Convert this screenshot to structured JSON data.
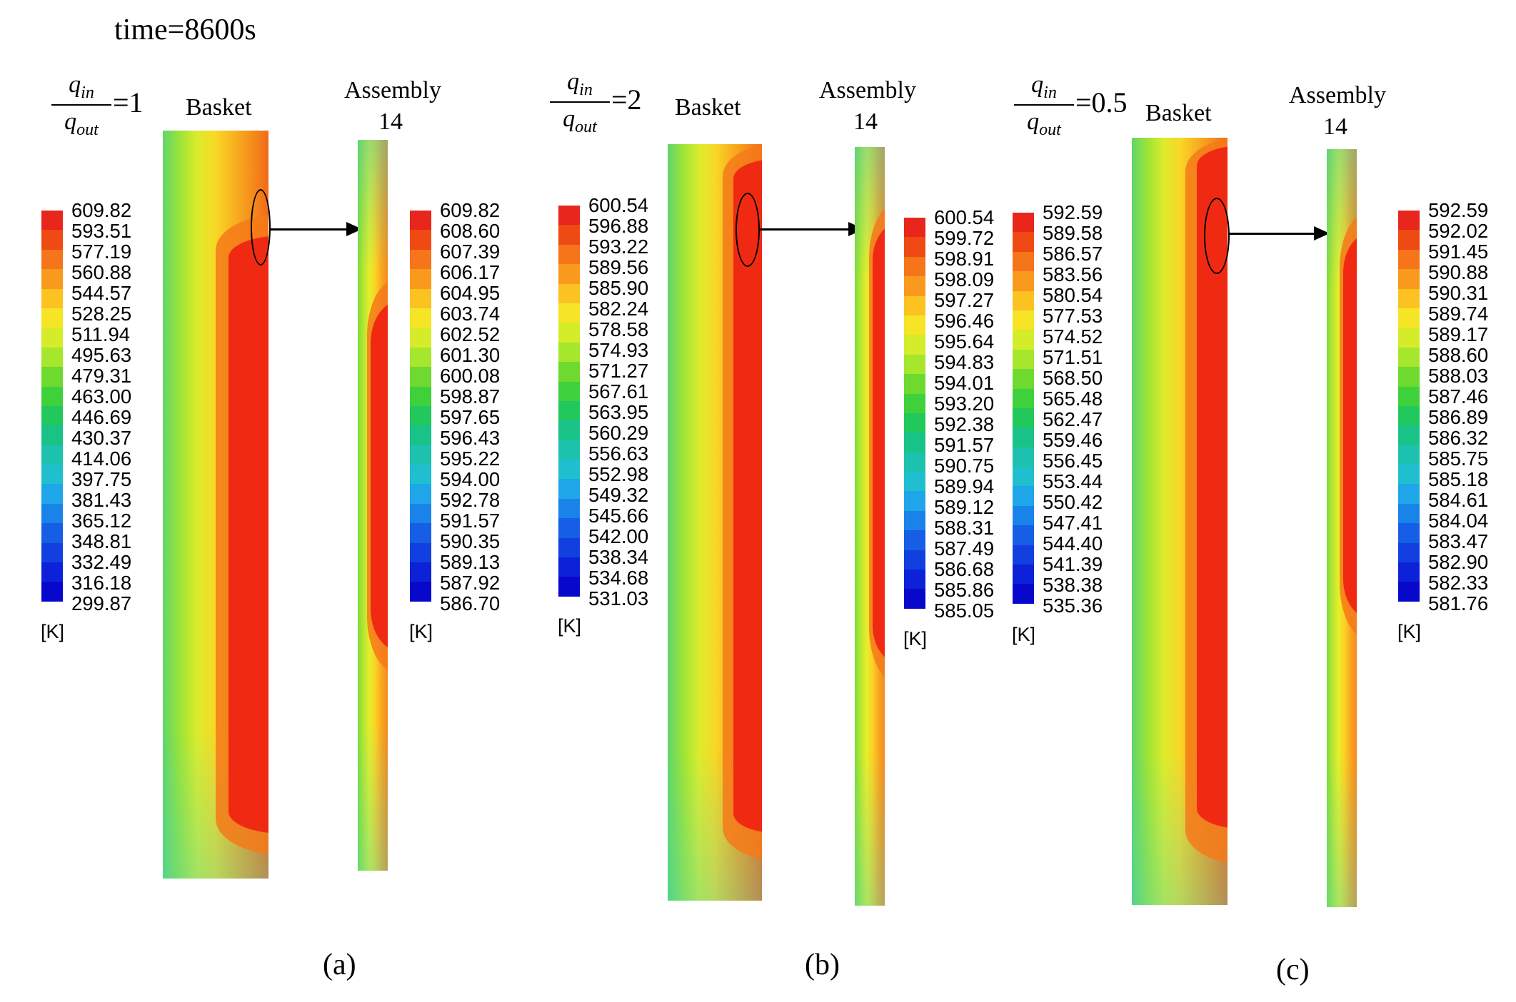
{
  "figure": {
    "time_label": "time=8600s",
    "unit": "[K]",
    "basket_label": "Basket",
    "assembly_label": "Assembly",
    "assembly_number": "14",
    "ratio_numerator": "q",
    "ratio_numerator_sub": "in",
    "ratio_denominator": "q",
    "ratio_denominator_sub": "out"
  },
  "panels": [
    {
      "id": "a",
      "sub_label": "(a)",
      "ratio_value": "=1",
      "basket_legend": [
        "609.82",
        "593.51",
        "577.19",
        "560.88",
        "544.57",
        "528.25",
        "511.94",
        "495.63",
        "479.31",
        "463.00",
        "446.69",
        "430.37",
        "414.06",
        "397.75",
        "381.43",
        "365.12",
        "348.81",
        "332.49",
        "316.18",
        "299.87"
      ],
      "assembly_legend": [
        "609.82",
        "608.60",
        "607.39",
        "606.17",
        "604.95",
        "603.74",
        "602.52",
        "601.30",
        "600.08",
        "598.87",
        "597.65",
        "596.43",
        "595.22",
        "594.00",
        "592.78",
        "591.57",
        "590.35",
        "589.13",
        "587.92",
        "586.70"
      ]
    },
    {
      "id": "b",
      "sub_label": "(b)",
      "ratio_value": "=2",
      "basket_legend": [
        "600.54",
        "596.88",
        "593.22",
        "589.56",
        "585.90",
        "582.24",
        "578.58",
        "574.93",
        "571.27",
        "567.61",
        "563.95",
        "560.29",
        "556.63",
        "552.98",
        "549.32",
        "545.66",
        "542.00",
        "538.34",
        "534.68",
        "531.03"
      ],
      "assembly_legend": [
        "600.54",
        "599.72",
        "598.91",
        "598.09",
        "597.27",
        "596.46",
        "595.64",
        "594.83",
        "594.01",
        "593.20",
        "592.38",
        "591.57",
        "590.75",
        "589.94",
        "589.12",
        "588.31",
        "587.49",
        "586.68",
        "585.86",
        "585.05"
      ]
    },
    {
      "id": "c",
      "sub_label": "(c)",
      "ratio_value": "=0.5",
      "basket_legend": [
        "592.59",
        "589.58",
        "586.57",
        "583.56",
        "580.54",
        "577.53",
        "574.52",
        "571.51",
        "568.50",
        "565.48",
        "562.47",
        "559.46",
        "556.45",
        "553.44",
        "550.42",
        "547.41",
        "544.40",
        "541.39",
        "538.38",
        "535.36"
      ],
      "assembly_legend": [
        "592.59",
        "592.02",
        "591.45",
        "590.88",
        "590.31",
        "589.74",
        "589.17",
        "588.60",
        "588.03",
        "587.46",
        "586.89",
        "586.32",
        "585.75",
        "585.18",
        "584.61",
        "584.04",
        "583.47",
        "582.90",
        "582.33",
        "581.76"
      ]
    }
  ],
  "colors": {
    "colormap": [
      "#e8261c",
      "#f04a14",
      "#f6741a",
      "#f99a1c",
      "#fbc221",
      "#f6e426",
      "#d4ec2a",
      "#a6e62c",
      "#6ed92e",
      "#3fd13c",
      "#21c85c",
      "#19c287",
      "#1cc2ad",
      "#1fbfd0",
      "#1ea6e8",
      "#1a83ea",
      "#165ee6",
      "#1240e0",
      "#0d22d8",
      "#0808cc"
    ],
    "hot": "#f02a12"
  }
}
